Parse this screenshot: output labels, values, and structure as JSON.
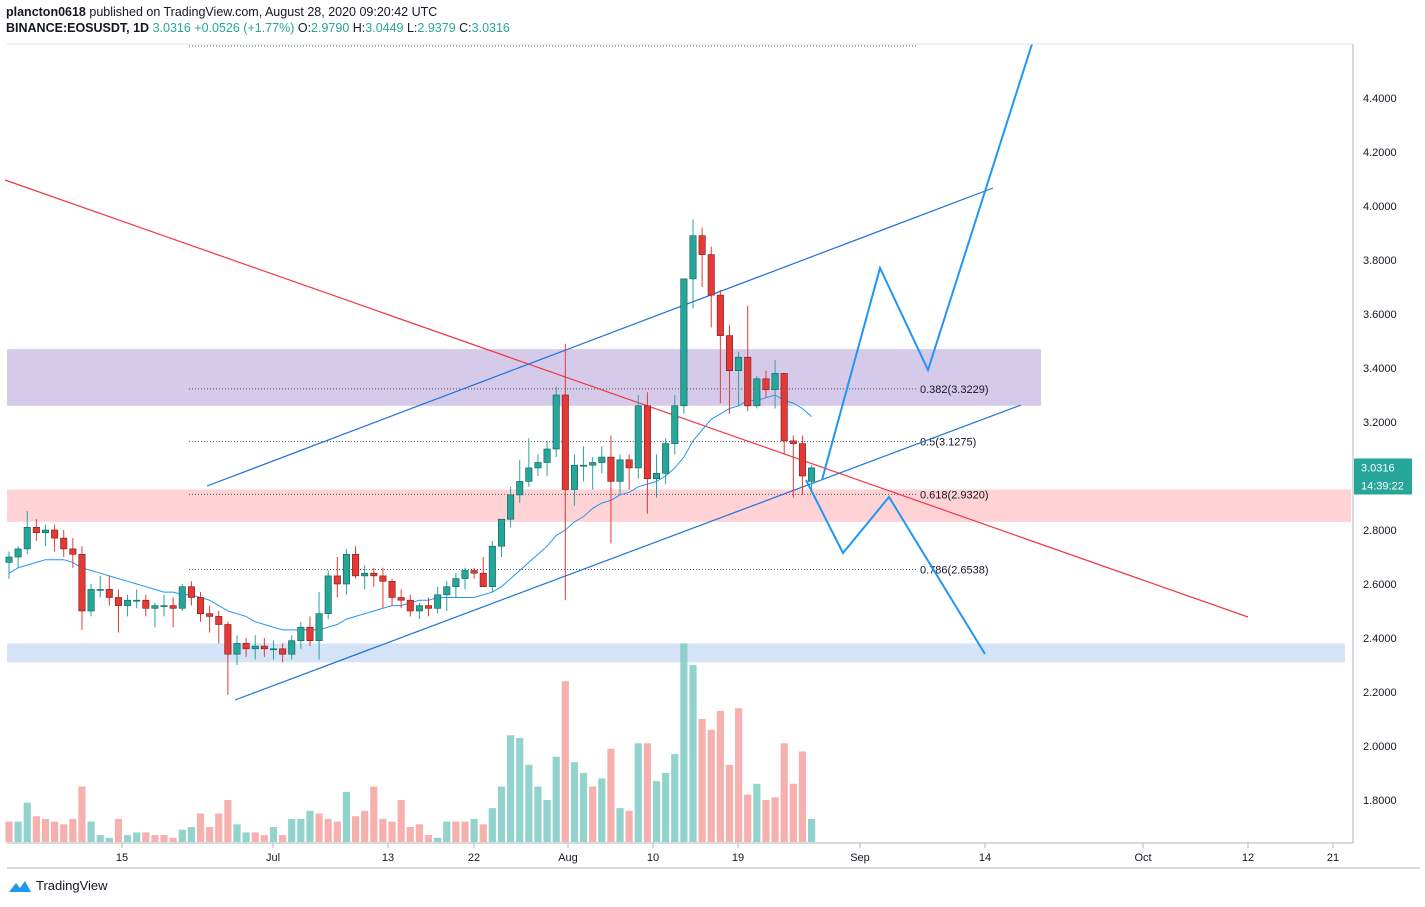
{
  "header": {
    "publisher": "plancton0618",
    "published_text": "published on TradingView.com, August 28, 2020 09:20:42 UTC",
    "symbol": "BINANCE:EOSUSDT, 1D",
    "last": "3.0316",
    "change": "+0.0526 (+1.77%)",
    "o_label": "O:",
    "o_val": "2.9790",
    "h_label": "H:",
    "h_val": "3.0449",
    "l_label": "L:",
    "l_val": "2.9379",
    "c_label": "C:",
    "c_val": "3.0316"
  },
  "footer": {
    "brand": "TradingView"
  },
  "colors": {
    "up": "#26a69a",
    "down": "#ef5350",
    "blue": "#2196f3",
    "red": "#f23645"
  },
  "chart_data": {
    "type": "candlestick",
    "title": "BINANCE:EOSUSDT, 1D",
    "ylim": [
      1.6,
      4.6
    ],
    "y_ticks": [
      "4.4000",
      "4.2000",
      "4.0000",
      "3.8000",
      "3.6000",
      "3.4000",
      "3.2000",
      "3.0000",
      "2.8000",
      "2.6000",
      "2.4000",
      "2.2000",
      "2.0000",
      "1.8000"
    ],
    "x_ticks": [
      "15",
      "Jul",
      "13",
      "22",
      "Aug",
      "10",
      "19",
      "Sep",
      "14",
      "Oct",
      "12",
      "21"
    ],
    "price_label": "3.0316",
    "countdown_label": "14:39:22",
    "fib_levels": [
      {
        "label": "0.382(3.3229)",
        "value": 3.3229
      },
      {
        "label": "0.5(3.1275)",
        "value": 3.1275
      },
      {
        "label": "0.618(2.9320)",
        "value": 2.932
      },
      {
        "label": "0.786(2.6538)",
        "value": 2.6538
      }
    ],
    "zones": [
      {
        "name": "resistance-zone",
        "from": 3.26,
        "to": 3.47,
        "color": "#d1c4e9"
      },
      {
        "name": "support-zone",
        "from": 2.83,
        "to": 2.95,
        "color": "#ffcdd2"
      },
      {
        "name": "lower-support-zone",
        "from": 2.31,
        "to": 2.38,
        "color": "#cfe0f7"
      }
    ],
    "candles": [
      [
        2.68,
        2.72,
        2.62,
        2.7
      ],
      [
        2.7,
        2.74,
        2.66,
        2.73
      ],
      [
        2.73,
        2.87,
        2.71,
        2.81
      ],
      [
        2.81,
        2.84,
        2.76,
        2.79
      ],
      [
        2.79,
        2.82,
        2.74,
        2.8
      ],
      [
        2.8,
        2.82,
        2.72,
        2.77
      ],
      [
        2.77,
        2.8,
        2.7,
        2.73
      ],
      [
        2.73,
        2.77,
        2.66,
        2.71
      ],
      [
        2.71,
        2.74,
        2.43,
        2.5
      ],
      [
        2.5,
        2.6,
        2.48,
        2.58
      ],
      [
        2.58,
        2.63,
        2.55,
        2.58
      ],
      [
        2.58,
        2.63,
        2.52,
        2.55
      ],
      [
        2.55,
        2.58,
        2.42,
        2.52
      ],
      [
        2.52,
        2.56,
        2.48,
        2.54
      ],
      [
        2.54,
        2.58,
        2.51,
        2.54
      ],
      [
        2.54,
        2.56,
        2.48,
        2.51
      ],
      [
        2.51,
        2.53,
        2.44,
        2.52
      ],
      [
        2.52,
        2.56,
        2.48,
        2.52
      ],
      [
        2.52,
        2.55,
        2.44,
        2.51
      ],
      [
        2.51,
        2.6,
        2.5,
        2.59
      ],
      [
        2.59,
        2.61,
        2.52,
        2.55
      ],
      [
        2.55,
        2.57,
        2.46,
        2.49
      ],
      [
        2.49,
        2.52,
        2.42,
        2.48
      ],
      [
        2.48,
        2.5,
        2.38,
        2.45
      ],
      [
        2.45,
        2.46,
        2.19,
        2.34
      ],
      [
        2.34,
        2.41,
        2.3,
        2.38
      ],
      [
        2.38,
        2.4,
        2.33,
        2.36
      ],
      [
        2.36,
        2.41,
        2.32,
        2.37
      ],
      [
        2.37,
        2.4,
        2.33,
        2.36
      ],
      [
        2.36,
        2.39,
        2.32,
        2.36
      ],
      [
        2.36,
        2.38,
        2.31,
        2.34
      ],
      [
        2.34,
        2.41,
        2.32,
        2.39
      ],
      [
        2.39,
        2.46,
        2.36,
        2.44
      ],
      [
        2.44,
        2.48,
        2.37,
        2.39
      ],
      [
        2.39,
        2.57,
        2.32,
        2.49
      ],
      [
        2.49,
        2.65,
        2.47,
        2.63
      ],
      [
        2.63,
        2.7,
        2.55,
        2.6
      ],
      [
        2.6,
        2.73,
        2.56,
        2.71
      ],
      [
        2.71,
        2.74,
        2.62,
        2.63
      ],
      [
        2.63,
        2.67,
        2.58,
        2.64
      ],
      [
        2.64,
        2.66,
        2.59,
        2.63
      ],
      [
        2.63,
        2.66,
        2.51,
        2.61
      ],
      [
        2.61,
        2.62,
        2.52,
        2.55
      ],
      [
        2.55,
        2.58,
        2.51,
        2.54
      ],
      [
        2.54,
        2.56,
        2.48,
        2.5
      ],
      [
        2.5,
        2.53,
        2.47,
        2.52
      ],
      [
        2.52,
        2.55,
        2.48,
        2.51
      ],
      [
        2.51,
        2.59,
        2.49,
        2.56
      ],
      [
        2.56,
        2.61,
        2.5,
        2.59
      ],
      [
        2.59,
        2.64,
        2.55,
        2.62
      ],
      [
        2.62,
        2.66,
        2.58,
        2.65
      ],
      [
        2.65,
        2.66,
        2.62,
        2.64
      ],
      [
        2.64,
        2.7,
        2.59,
        2.59
      ],
      [
        2.59,
        2.76,
        2.57,
        2.74
      ],
      [
        2.74,
        2.83,
        2.7,
        2.84
      ],
      [
        2.84,
        2.96,
        2.81,
        2.93
      ],
      [
        2.93,
        3.06,
        2.9,
        2.98
      ],
      [
        2.98,
        3.14,
        2.96,
        3.03
      ],
      [
        3.03,
        3.08,
        3.0,
        3.05
      ],
      [
        3.05,
        3.13,
        3.0,
        3.1
      ],
      [
        3.1,
        3.33,
        3.07,
        3.3
      ],
      [
        3.3,
        3.49,
        2.54,
        2.95
      ],
      [
        2.95,
        3.08,
        2.89,
        3.04
      ],
      [
        3.04,
        3.11,
        2.98,
        3.04
      ],
      [
        3.04,
        3.07,
        2.95,
        3.05
      ],
      [
        3.05,
        3.11,
        3.01,
        3.07
      ],
      [
        3.07,
        3.15,
        2.75,
        2.98
      ],
      [
        2.98,
        3.08,
        2.93,
        3.06
      ],
      [
        3.06,
        3.08,
        2.95,
        3.03
      ],
      [
        3.03,
        3.3,
        2.99,
        3.26
      ],
      [
        3.26,
        3.31,
        2.86,
        2.99
      ],
      [
        2.99,
        3.08,
        2.92,
        3.01
      ],
      [
        3.01,
        3.14,
        2.97,
        3.12
      ],
      [
        3.12,
        3.3,
        3.08,
        3.26
      ],
      [
        3.26,
        3.73,
        3.23,
        3.73
      ],
      [
        3.73,
        3.95,
        3.62,
        3.89
      ],
      [
        3.89,
        3.92,
        3.7,
        3.82
      ],
      [
        3.82,
        3.85,
        3.55,
        3.67
      ],
      [
        3.67,
        3.69,
        3.27,
        3.52
      ],
      [
        3.52,
        3.56,
        3.23,
        3.39
      ],
      [
        3.39,
        3.46,
        3.26,
        3.44
      ],
      [
        3.44,
        3.63,
        3.24,
        3.26
      ],
      [
        3.26,
        3.37,
        3.25,
        3.36
      ],
      [
        3.36,
        3.39,
        3.29,
        3.32
      ],
      [
        3.32,
        3.43,
        3.25,
        3.38
      ],
      [
        3.38,
        3.38,
        3.08,
        3.13
      ],
      [
        3.13,
        3.15,
        2.92,
        3.12
      ],
      [
        3.12,
        3.15,
        2.93,
        3.0
      ],
      [
        2.98,
        3.04,
        2.94,
        3.03
      ]
    ],
    "volume": [
      [
        1.72,
        0
      ],
      [
        1.72,
        1
      ],
      [
        1.79,
        1
      ],
      [
        1.74,
        0
      ],
      [
        1.73,
        0
      ],
      [
        1.72,
        0
      ],
      [
        1.71,
        0
      ],
      [
        1.73,
        0
      ],
      [
        1.85,
        0
      ],
      [
        1.72,
        1
      ],
      [
        1.67,
        1
      ],
      [
        1.66,
        1
      ],
      [
        1.73,
        0
      ],
      [
        1.67,
        1
      ],
      [
        1.68,
        1
      ],
      [
        1.68,
        0
      ],
      [
        1.67,
        0
      ],
      [
        1.67,
        0
      ],
      [
        1.66,
        0
      ],
      [
        1.69,
        1
      ],
      [
        1.7,
        1
      ],
      [
        1.75,
        0
      ],
      [
        1.7,
        0
      ],
      [
        1.75,
        0
      ],
      [
        1.8,
        0
      ],
      [
        1.71,
        1
      ],
      [
        1.68,
        1
      ],
      [
        1.68,
        0
      ],
      [
        1.67,
        0
      ],
      [
        1.7,
        1
      ],
      [
        1.67,
        0
      ],
      [
        1.73,
        1
      ],
      [
        1.73,
        1
      ],
      [
        1.76,
        1
      ],
      [
        1.75,
        0
      ],
      [
        1.73,
        0
      ],
      [
        1.72,
        0
      ],
      [
        1.83,
        1
      ],
      [
        1.74,
        0
      ],
      [
        1.76,
        0
      ],
      [
        1.85,
        0
      ],
      [
        1.73,
        0
      ],
      [
        1.72,
        0
      ],
      [
        1.8,
        0
      ],
      [
        1.7,
        0
      ],
      [
        1.71,
        0
      ],
      [
        1.67,
        0
      ],
      [
        1.66,
        1
      ],
      [
        1.72,
        1
      ],
      [
        1.72,
        0
      ],
      [
        1.72,
        0
      ],
      [
        1.73,
        1
      ],
      [
        1.71,
        0
      ],
      [
        1.77,
        1
      ],
      [
        1.85,
        1
      ],
      [
        2.04,
        1
      ],
      [
        2.03,
        1
      ],
      [
        1.93,
        1
      ],
      [
        1.85,
        1
      ],
      [
        1.8,
        1
      ],
      [
        1.96,
        1
      ],
      [
        2.24,
        0
      ],
      [
        1.94,
        1
      ],
      [
        1.9,
        1
      ],
      [
        1.85,
        0
      ],
      [
        1.88,
        1
      ],
      [
        1.99,
        0
      ],
      [
        1.77,
        1
      ],
      [
        1.76,
        0
      ],
      [
        2.01,
        1
      ],
      [
        2.01,
        0
      ],
      [
        1.87,
        1
      ],
      [
        1.9,
        1
      ],
      [
        1.97,
        1
      ],
      [
        2.38,
        1
      ],
      [
        2.3,
        1
      ],
      [
        2.1,
        0
      ],
      [
        2.06,
        0
      ],
      [
        2.13,
        0
      ],
      [
        1.93,
        0
      ],
      [
        2.14,
        0
      ],
      [
        1.82,
        0
      ],
      [
        1.86,
        1
      ],
      [
        1.8,
        0
      ],
      [
        1.81,
        0
      ],
      [
        2.01,
        0
      ],
      [
        1.86,
        0
      ],
      [
        1.98,
        0
      ],
      [
        1.73,
        1
      ]
    ],
    "ma20": [
      2.64,
      2.66,
      2.67,
      2.68,
      2.69,
      2.69,
      2.69,
      2.68,
      2.66,
      2.65,
      2.64,
      2.63,
      2.62,
      2.61,
      2.6,
      2.59,
      2.58,
      2.57,
      2.57,
      2.56,
      2.56,
      2.55,
      2.54,
      2.52,
      2.5,
      2.49,
      2.48,
      2.46,
      2.45,
      2.44,
      2.43,
      2.43,
      2.43,
      2.43,
      2.43,
      2.44,
      2.45,
      2.47,
      2.48,
      2.49,
      2.5,
      2.51,
      2.52,
      2.52,
      2.53,
      2.54,
      2.54,
      2.55,
      2.55,
      2.55,
      2.55,
      2.55,
      2.56,
      2.57,
      2.59,
      2.62,
      2.65,
      2.68,
      2.71,
      2.74,
      2.78,
      2.8,
      2.83,
      2.85,
      2.88,
      2.9,
      2.91,
      2.93,
      2.94,
      2.96,
      2.97,
      2.98,
      3.0,
      3.03,
      3.07,
      3.13,
      3.17,
      3.21,
      3.23,
      3.25,
      3.26,
      3.28,
      3.28,
      3.29,
      3.3,
      3.28,
      3.27,
      3.25,
      3.22
    ]
  }
}
